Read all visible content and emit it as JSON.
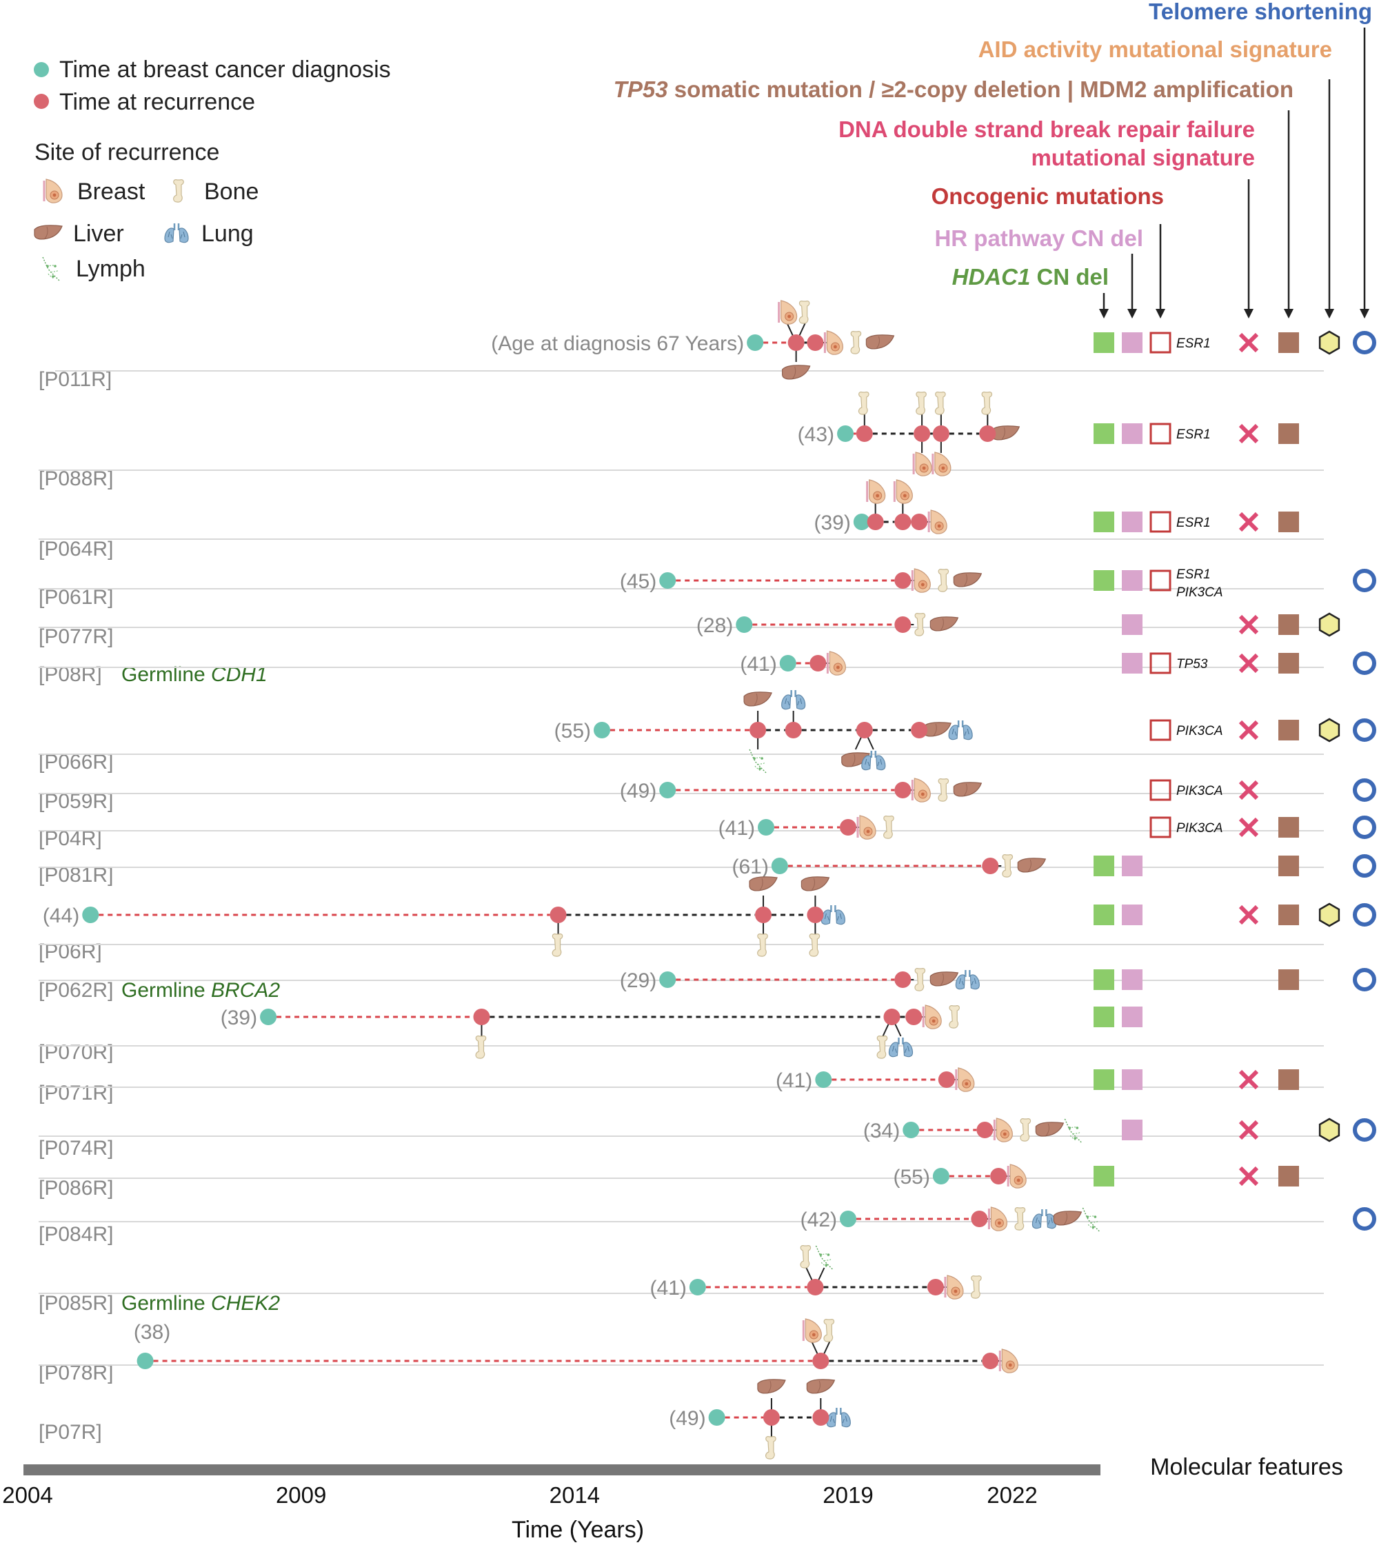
{
  "colors": {
    "dx": "#6cc4b1",
    "recur": "#d9666f",
    "link_red": "#d9444b",
    "link_black": "#222222",
    "hdac1": "#8ccc6a",
    "hr": "#d9a5cc",
    "onco": "#c23a3a",
    "dsb": "#dd4a73",
    "tp53": "#a87560",
    "aid": "#f0ec9a",
    "telomere": "#3d69b5",
    "axis": "#777777",
    "label_grey": "#888888",
    "germline": "#2f6e22"
  },
  "legend": {
    "diagnosis": "Time at breast cancer diagnosis",
    "recurrence": "Time at recurrence",
    "site_title": "Site of recurrence",
    "sites": [
      {
        "key": "breast",
        "label": "Breast"
      },
      {
        "key": "bone",
        "label": "Bone"
      },
      {
        "key": "liver",
        "label": "Liver"
      },
      {
        "key": "lung",
        "label": "Lung"
      },
      {
        "key": "lymph",
        "label": "Lymph"
      }
    ]
  },
  "feature_headers": {
    "telomere": "Telomere shortening",
    "aid": "AID activity mutational signature",
    "tp53_italic": "TP53",
    "tp53_rest": " somatic mutation / ≥2-copy deletion | MDM2 amplification",
    "dsb_line1": "DNA double strand break repair failure",
    "dsb_line2": "mutational signature",
    "onco": "Oncogenic mutations",
    "hr": "HR pathway CN del",
    "hdac1_italic": "HDAC1",
    "hdac1_rest": " CN del"
  },
  "molecular_label": "Molecular features",
  "chart_data": {
    "type": "timeline",
    "xlabel": "Time (Years)",
    "xlim": [
      2004,
      2023.5
    ],
    "ticks": [
      2004,
      2009,
      2014,
      2019,
      2022
    ],
    "patients": [
      {
        "id": "[P011R]",
        "age": "(Age at diagnosis 67 Years)",
        "dx": 2017.3,
        "rec": [
          {
            "t": 2018.05,
            "above": [
              "breast",
              "bone"
            ],
            "below": [
              "liver"
            ]
          },
          {
            "t": 2018.4,
            "right": [
              "breast",
              "bone",
              "liver"
            ]
          }
        ],
        "features": {
          "hdac1": true,
          "hr": true,
          "onco": true,
          "genes": [
            "ESR1"
          ],
          "dsb": true,
          "tp53": true,
          "aid": true,
          "telomere": true
        }
      },
      {
        "id": "[P088R]",
        "age": "(43)",
        "dx": 2018.95,
        "rec": [
          {
            "t": 2019.3,
            "above": [
              "bone"
            ]
          },
          {
            "t": 2020.35,
            "above": [
              "bone"
            ],
            "below": [
              "breast"
            ]
          },
          {
            "t": 2020.7,
            "above": [
              "bone"
            ],
            "below": [
              "breast"
            ]
          },
          {
            "t": 2021.55,
            "above": [
              "bone"
            ],
            "right": [
              "liver"
            ]
          }
        ],
        "features": {
          "hdac1": true,
          "hr": true,
          "onco": true,
          "genes": [
            "ESR1"
          ],
          "dsb": true,
          "tp53": true
        }
      },
      {
        "id": "[P064R]",
        "age": "(39)",
        "dx": 2019.25,
        "rec": [
          {
            "t": 2019.5,
            "above": [
              "breast"
            ]
          },
          {
            "t": 2020.0,
            "above": [
              "breast"
            ]
          },
          {
            "t": 2020.3,
            "right": [
              "breast"
            ]
          }
        ],
        "features": {
          "hdac1": true,
          "hr": true,
          "onco": true,
          "genes": [
            "ESR1"
          ],
          "dsb": true,
          "tp53": true
        }
      },
      {
        "id": "[P061R]",
        "age": "(45)",
        "dx": 2015.7,
        "rec": [
          {
            "t": 2020.0,
            "right": [
              "breast",
              "bone",
              "liver"
            ]
          }
        ],
        "features": {
          "hdac1": true,
          "hr": true,
          "onco": true,
          "genes": [
            "ESR1",
            "PIK3CA"
          ],
          "telomere": true
        }
      },
      {
        "id": "[P077R]",
        "age": "(28)",
        "dx": 2017.1,
        "rec": [
          {
            "t": 2020.0,
            "right": [
              "bone",
              "liver"
            ]
          }
        ],
        "features": {
          "hr": true,
          "dsb": true,
          "tp53": true,
          "aid": true
        }
      },
      {
        "id": "[P08R]",
        "germ": "CDH1",
        "age": "(41)",
        "dx": 2017.9,
        "rec": [
          {
            "t": 2018.45,
            "right": [
              "breast"
            ]
          }
        ],
        "features": {
          "hr": true,
          "onco": true,
          "genes": [
            "TP53"
          ],
          "dsb": true,
          "tp53": true,
          "telomere": true
        }
      },
      {
        "id": "[P066R]",
        "age": "(55)",
        "dx": 2014.5,
        "rec": [
          {
            "t": 2017.35,
            "above": [
              "liver"
            ],
            "below": [
              "lymph"
            ]
          },
          {
            "t": 2018.0,
            "above": [
              "lung"
            ]
          },
          {
            "t": 2019.3,
            "below": [
              "liver",
              "lung"
            ]
          },
          {
            "t": 2020.3,
            "right": [
              "liver",
              "lung"
            ]
          }
        ],
        "features": {
          "onco": true,
          "genes": [
            "PIK3CA"
          ],
          "dsb": true,
          "tp53": true,
          "aid": true,
          "telomere": true
        }
      },
      {
        "id": "[P059R]",
        "age": "(49)",
        "dx": 2015.7,
        "rec": [
          {
            "t": 2020.0,
            "right": [
              "breast",
              "bone",
              "liver"
            ]
          }
        ],
        "features": {
          "onco": true,
          "genes": [
            "PIK3CA"
          ],
          "dsb": true,
          "telomere": true
        }
      },
      {
        "id": "[P04R]",
        "age": "(41)",
        "dx": 2017.5,
        "rec": [
          {
            "t": 2019.0,
            "right": [
              "breast",
              "bone"
            ]
          }
        ],
        "features": {
          "onco": true,
          "genes": [
            "PIK3CA"
          ],
          "dsb": true,
          "tp53": true,
          "telomere": true
        }
      },
      {
        "id": "[P081R]",
        "age": "(61)",
        "dx": 2017.75,
        "rec": [
          {
            "t": 2021.6,
            "right": [
              "bone",
              "liver"
            ]
          }
        ],
        "features": {
          "hdac1": true,
          "hr": true,
          "tp53": true,
          "telomere": true
        }
      },
      {
        "id": "[P06R]",
        "age": "(44)",
        "dx": 2005.15,
        "rec": [
          {
            "t": 2013.7,
            "below": [
              "bone"
            ]
          },
          {
            "t": 2017.45,
            "above": [
              "liver"
            ],
            "below": [
              "bone"
            ]
          },
          {
            "t": 2018.4,
            "above": [
              "liver"
            ],
            "below": [
              "bone"
            ],
            "right": [
              "lung"
            ]
          }
        ],
        "features": {
          "hdac1": true,
          "hr": true,
          "dsb": true,
          "tp53": true,
          "aid": true,
          "telomere": true
        }
      },
      {
        "id": "[P062R]",
        "germ": "BRCA2",
        "age": "(29)",
        "dx": 2015.7,
        "rec": [
          {
            "t": 2020.0,
            "right": [
              "bone",
              "liver",
              "lung"
            ]
          }
        ],
        "features": {
          "hdac1": true,
          "hr": true,
          "tp53": true,
          "telomere": true
        }
      },
      {
        "id": "[P070R]",
        "age": "(39)",
        "dx": 2008.4,
        "rec": [
          {
            "t": 2012.3,
            "below": [
              "bone"
            ]
          },
          {
            "t": 2019.8,
            "below": [
              "bone",
              "lung"
            ]
          },
          {
            "t": 2020.2,
            "right": [
              "breast",
              "bone"
            ]
          }
        ],
        "features": {
          "hdac1": true,
          "hr": true
        }
      },
      {
        "id": "[P071R]",
        "age": "(41)",
        "dx": 2018.55,
        "rec": [
          {
            "t": 2020.8,
            "right": [
              "breast"
            ]
          }
        ],
        "features": {
          "hdac1": true,
          "hr": true,
          "dsb": true,
          "tp53": true
        }
      },
      {
        "id": "[P074R]",
        "age": "(34)",
        "dx": 2020.15,
        "rec": [
          {
            "t": 2021.5,
            "right": [
              "breast",
              "bone",
              "liver",
              "lymph"
            ]
          }
        ],
        "features": {
          "hr": true,
          "dsb": true,
          "aid": true,
          "telomere": true
        }
      },
      {
        "id": "[P086R]",
        "age": "(55)",
        "dx": 2020.7,
        "rec": [
          {
            "t": 2021.75,
            "right": [
              "breast"
            ]
          }
        ],
        "features": {
          "hdac1": true,
          "dsb": true,
          "tp53": true
        }
      },
      {
        "id": "[P084R]",
        "age": "(42)",
        "dx": 2019.0,
        "rec": [
          {
            "t": 2021.4,
            "right": [
              "breast",
              "bone",
              "lung",
              "liver",
              "lymph"
            ]
          }
        ],
        "features": {
          "telomere": true
        }
      },
      {
        "id": "[P085R]",
        "germ": "CHEK2",
        "age": "(41)",
        "dx": 2016.25,
        "rec": [
          {
            "t": 2018.4,
            "above": [
              "bone",
              "lymph"
            ]
          },
          {
            "t": 2020.6,
            "right": [
              "breast",
              "bone"
            ]
          }
        ],
        "features": {}
      },
      {
        "id": "[P078R]",
        "age": "(38)",
        "ageAbove": true,
        "dx": 2006.15,
        "rec": [
          {
            "t": 2018.5,
            "above": [
              "breast",
              "bone"
            ]
          },
          {
            "t": 2021.6,
            "right": [
              "breast"
            ]
          }
        ],
        "features": {}
      },
      {
        "id": "[P07R]",
        "age": "(49)",
        "dx": 2016.6,
        "rec": [
          {
            "t": 2017.6,
            "above": [
              "liver"
            ],
            "below": [
              "bone"
            ]
          },
          {
            "t": 2018.5,
            "above": [
              "liver"
            ],
            "right": [
              "lung"
            ]
          }
        ],
        "features": {}
      }
    ]
  }
}
